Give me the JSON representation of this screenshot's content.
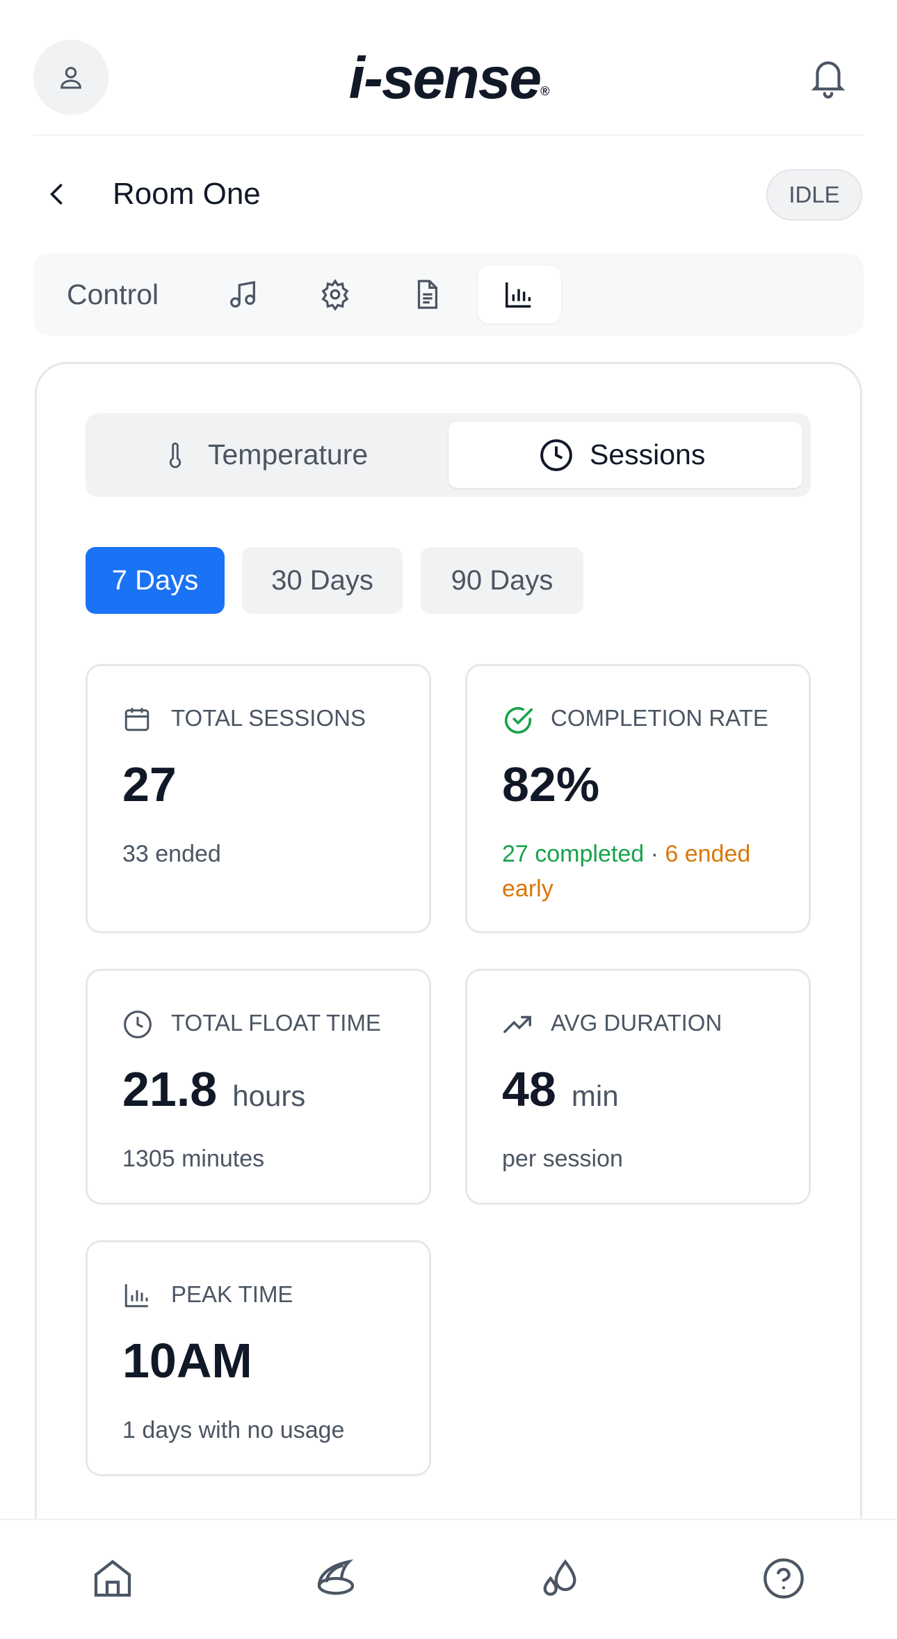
{
  "header": {
    "logo": "i-sense",
    "logo_mark": "®"
  },
  "room": {
    "title": "Room One",
    "status": "IDLE"
  },
  "tabs": {
    "control": "Control"
  },
  "segment": {
    "temperature": "Temperature",
    "sessions": "Sessions"
  },
  "ranges": [
    "7 Days",
    "30 Days",
    "90 Days"
  ],
  "cards": [
    {
      "label": "TOTAL SESSIONS",
      "value": "27",
      "sub": "33 ended"
    },
    {
      "label": "COMPLETION RATE",
      "value": "82%",
      "sub_completed": "27 completed",
      "separator": "·",
      "sub_early": "6 ended early"
    },
    {
      "label": "TOTAL FLOAT TIME",
      "value": "21.8",
      "unit": "hours",
      "sub": "1305 minutes"
    },
    {
      "label": "AVG DURATION",
      "value": "48",
      "unit": "min",
      "sub": "per session"
    },
    {
      "label": "PEAK TIME",
      "value": "10AM",
      "sub": "1 days with no usage"
    }
  ]
}
